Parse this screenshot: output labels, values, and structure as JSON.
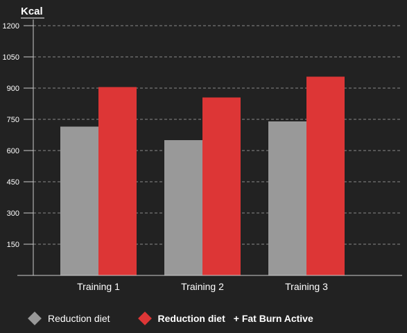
{
  "chart_data": {
    "type": "bar",
    "ylabel": "Kcal",
    "ylim": [
      0,
      1200
    ],
    "yticks": [
      150,
      300,
      450,
      600,
      750,
      900,
      1050,
      1200
    ],
    "categories": [
      "Training 1",
      "Training 2",
      "Training 3"
    ],
    "series": [
      {
        "name": "Reduction diet",
        "values": [
          715,
          650,
          740
        ],
        "color": "#999999"
      },
      {
        "name": "Reduction diet + Fat Burn Active",
        "values": [
          905,
          855,
          955
        ],
        "color": "#dd3636"
      }
    ],
    "grid": true,
    "legend": "bottom"
  },
  "legend": {
    "item1_label": "Reduction diet",
    "item2_label": "Reduction diet",
    "item2_suffix": "+ Fat Burn Active"
  }
}
